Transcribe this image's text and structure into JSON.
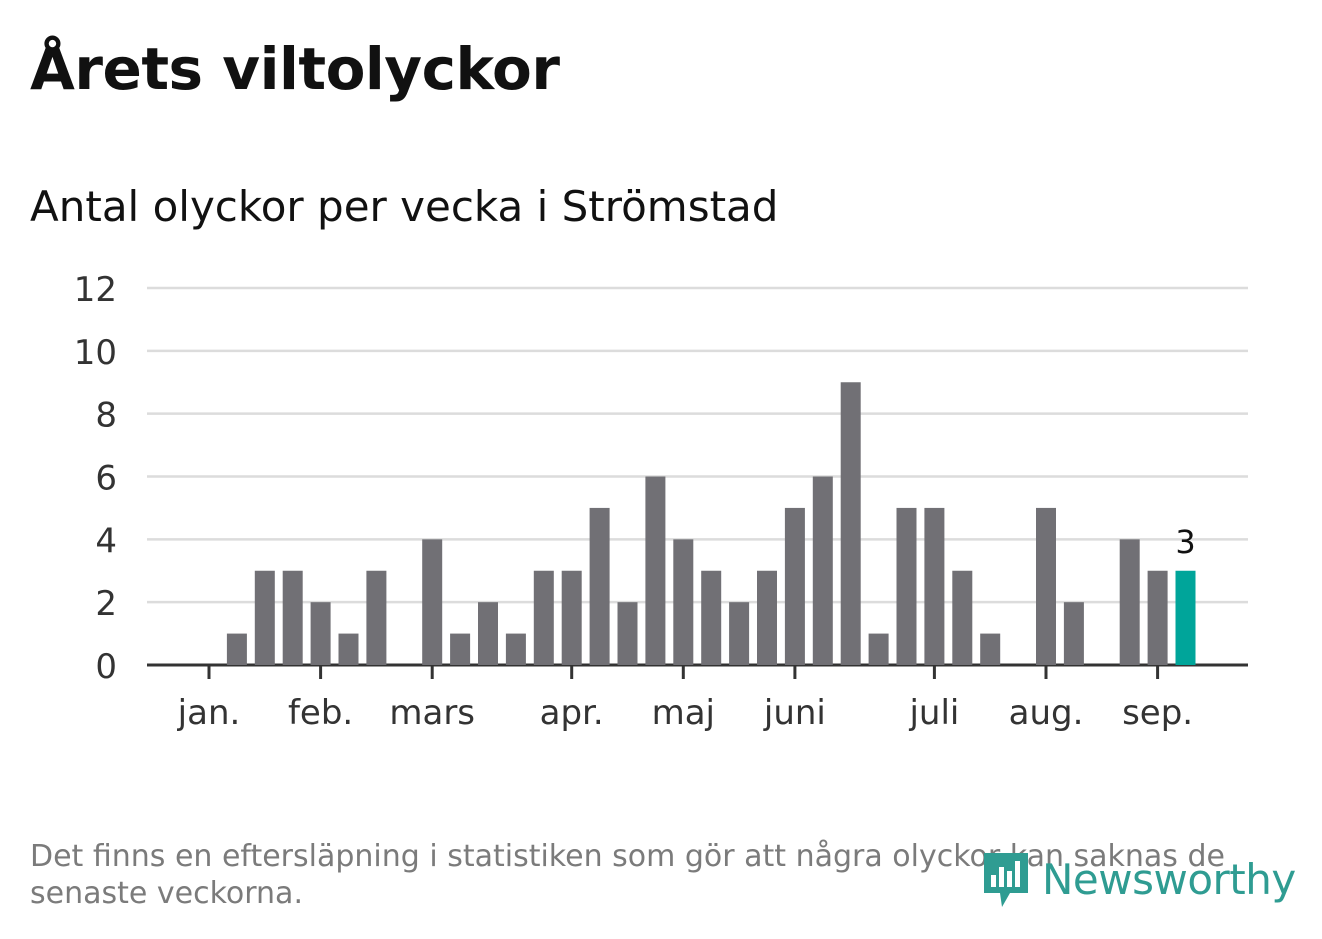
{
  "title": "Årets viltolyckor",
  "subtitle": "Antal olyckor per vecka i Strömstad",
  "footnote": "Det finns en eftersläpning i statistiken som gör att några olyckor kan saknas de senaste veckorna.",
  "logo": {
    "text": "Newsworthy",
    "icon": "bar-chart-speech-bubble-icon",
    "color": "#2f9c92"
  },
  "colors": {
    "bar": "#717075",
    "highlight": "#00a59a",
    "grid": "#dcdcdc",
    "axis": "#333333"
  },
  "chart_data": {
    "type": "bar",
    "title": "Antal olyckor per vecka i Strömstad",
    "ylim": [
      0,
      12
    ],
    "yticks": [
      0,
      2,
      4,
      6,
      8,
      10,
      12
    ],
    "grid": true,
    "x_unit": "week",
    "x_tick_labels": [
      {
        "label": "jan.",
        "week": 1
      },
      {
        "label": "feb.",
        "week": 5
      },
      {
        "label": "mars",
        "week": 9
      },
      {
        "label": "apr.",
        "week": 14
      },
      {
        "label": "maj",
        "week": 18
      },
      {
        "label": "juni",
        "week": 22
      },
      {
        "label": "juli",
        "week": 27
      },
      {
        "label": "aug.",
        "week": 31
      },
      {
        "label": "sep.",
        "week": 35
      }
    ],
    "weeks": [
      1,
      2,
      3,
      4,
      5,
      6,
      7,
      8,
      9,
      10,
      11,
      12,
      13,
      14,
      15,
      16,
      17,
      18,
      19,
      20,
      21,
      22,
      23,
      24,
      25,
      26,
      27,
      28,
      29,
      30,
      31,
      32,
      33,
      34,
      35,
      36
    ],
    "values": [
      0,
      1,
      3,
      3,
      2,
      1,
      3,
      0,
      4,
      1,
      2,
      1,
      3,
      3,
      5,
      2,
      6,
      4,
      3,
      2,
      3,
      5,
      6,
      9,
      1,
      5,
      5,
      3,
      1,
      0,
      5,
      2,
      0,
      4,
      3,
      3
    ],
    "highlight_index": 35,
    "highlight_label": "3"
  }
}
